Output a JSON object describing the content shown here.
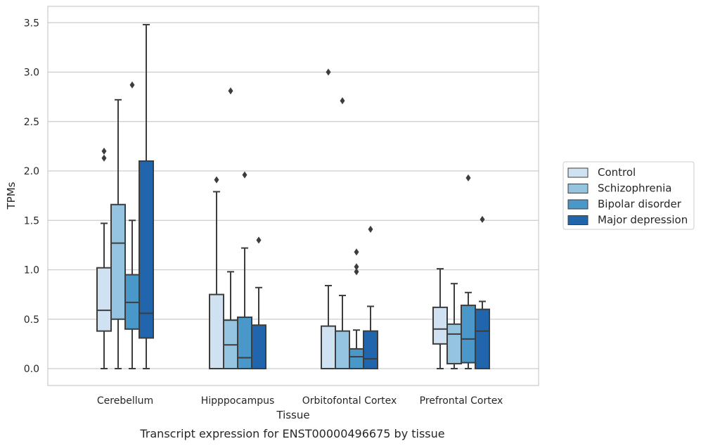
{
  "caption": "Transcript expression for ENST00000496675 by tissue",
  "chart_data": {
    "type": "boxplot",
    "title": "",
    "xlabel": "Tissue",
    "ylabel": "TPMs",
    "ylim": [
      -0.17,
      3.65
    ],
    "yticks": [
      "0.0",
      "0.5",
      "1.0",
      "1.5",
      "2.0",
      "2.5",
      "3.0",
      "3.5"
    ],
    "grid": "horizontal",
    "legend_position": "right",
    "categories": [
      "Cerebellum",
      "Hipppocampus",
      "Orbitofontal Cortex",
      "Prefrontal Cortex"
    ],
    "series": [
      {
        "name": "Control",
        "color": "#d0e1f2",
        "boxes": [
          {
            "whislo": 0.0,
            "q1": 0.38,
            "med": 0.59,
            "q3": 1.02,
            "whishi": 1.47,
            "fliers": [
              2.13,
              2.2
            ]
          },
          {
            "whislo": 0.0,
            "q1": 0.0,
            "med": 0.0,
            "q3": 0.75,
            "whishi": 1.79,
            "fliers": [
              1.91
            ]
          },
          {
            "whislo": 0.0,
            "q1": 0.0,
            "med": 0.0,
            "q3": 0.43,
            "whishi": 0.84,
            "fliers": [
              3.0
            ]
          },
          {
            "whislo": 0.0,
            "q1": 0.25,
            "med": 0.4,
            "q3": 0.62,
            "whishi": 1.01,
            "fliers": []
          }
        ]
      },
      {
        "name": "Schizophrenia",
        "color": "#94c4df",
        "boxes": [
          {
            "whislo": 0.0,
            "q1": 0.5,
            "med": 1.27,
            "q3": 1.66,
            "whishi": 2.72,
            "fliers": []
          },
          {
            "whislo": 0.0,
            "q1": 0.0,
            "med": 0.24,
            "q3": 0.49,
            "whishi": 0.98,
            "fliers": [
              2.81
            ]
          },
          {
            "whislo": 0.0,
            "q1": 0.0,
            "med": 0.0,
            "q3": 0.38,
            "whishi": 0.74,
            "fliers": [
              2.71
            ]
          },
          {
            "whislo": 0.0,
            "q1": 0.05,
            "med": 0.35,
            "q3": 0.45,
            "whishi": 0.86,
            "fliers": []
          }
        ]
      },
      {
        "name": "Bipolar disorder",
        "color": "#4a98c9",
        "boxes": [
          {
            "whislo": 0.0,
            "q1": 0.4,
            "med": 0.67,
            "q3": 0.95,
            "whishi": 1.5,
            "fliers": [
              2.87
            ]
          },
          {
            "whislo": 0.0,
            "q1": 0.0,
            "med": 0.11,
            "q3": 0.52,
            "whishi": 1.22,
            "fliers": [
              1.96
            ]
          },
          {
            "whislo": 0.0,
            "q1": 0.0,
            "med": 0.12,
            "q3": 0.2,
            "whishi": 0.39,
            "fliers": [
              0.98,
              1.03,
              1.18
            ]
          },
          {
            "whislo": 0.0,
            "q1": 0.06,
            "med": 0.3,
            "q3": 0.64,
            "whishi": 0.77,
            "fliers": [
              1.93
            ]
          }
        ]
      },
      {
        "name": "Major depression",
        "color": "#2166ac",
        "boxes": [
          {
            "whislo": 0.0,
            "q1": 0.31,
            "med": 0.56,
            "q3": 2.1,
            "whishi": 3.48,
            "fliers": []
          },
          {
            "whislo": 0.0,
            "q1": 0.0,
            "med": 0.0,
            "q3": 0.44,
            "whishi": 0.82,
            "fliers": [
              1.3
            ]
          },
          {
            "whislo": 0.0,
            "q1": 0.0,
            "med": 0.1,
            "q3": 0.38,
            "whishi": 0.63,
            "fliers": [
              1.41
            ]
          },
          {
            "whislo": 0.0,
            "q1": 0.0,
            "med": 0.38,
            "q3": 0.6,
            "whishi": 0.68,
            "fliers": [
              1.51
            ]
          }
        ]
      }
    ]
  }
}
